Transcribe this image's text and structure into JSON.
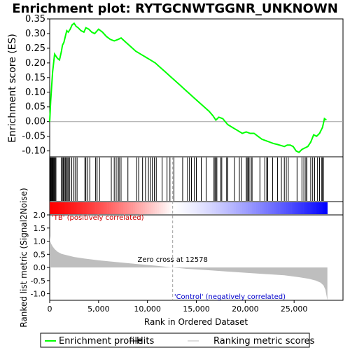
{
  "chart_data": {
    "type": "line",
    "title": "Enrichment plot: RYTGCNWTGGNR_UNKNOWN",
    "es_panel": {
      "ylabel": "Enrichment score (ES)",
      "ylim": [
        -0.12,
        0.35
      ],
      "yticks": [
        -0.1,
        -0.05,
        0.0,
        0.05,
        0.1,
        0.15,
        0.2,
        0.25,
        0.3,
        0.35
      ],
      "ytick_labels": [
        "-0.10",
        "-0.05",
        "0.00",
        "0.05",
        "0.10",
        "0.15",
        "0.20",
        "0.25",
        "0.30",
        "0.35"
      ],
      "series": [
        {
          "name": "Enrichment profile",
          "color": "#00ff00",
          "x": [
            0,
            100,
            200,
            300,
            400,
            500,
            600,
            800,
            1000,
            1200,
            1300,
            1450,
            1600,
            1750,
            1900,
            2100,
            2300,
            2500,
            2700,
            2900,
            3200,
            3500,
            3700,
            4000,
            4300,
            4600,
            5000,
            5400,
            5800,
            6200,
            6600,
            7000,
            7300,
            7800,
            8300,
            8800,
            9300,
            9800,
            10300,
            10800,
            11300,
            11800,
            12300,
            12800,
            13300,
            13800,
            14300,
            14800,
            15300,
            15800,
            16300,
            16700,
            17000,
            17300,
            17700,
            18200,
            18700,
            19200,
            19700,
            20100,
            20500,
            20900,
            21300,
            21700,
            22100,
            22500,
            22900,
            23300,
            23700,
            24000,
            24300,
            24600,
            24900,
            25200,
            25500,
            25800,
            26100,
            26400,
            26700,
            27000,
            27300,
            27600,
            27900,
            28100,
            28300
          ],
          "y": [
            0.0,
            0.07,
            0.12,
            0.17,
            0.2,
            0.23,
            0.225,
            0.215,
            0.21,
            0.24,
            0.26,
            0.27,
            0.29,
            0.31,
            0.305,
            0.315,
            0.33,
            0.335,
            0.325,
            0.32,
            0.31,
            0.305,
            0.32,
            0.315,
            0.305,
            0.3,
            0.315,
            0.305,
            0.29,
            0.28,
            0.275,
            0.28,
            0.285,
            0.27,
            0.255,
            0.24,
            0.23,
            0.22,
            0.21,
            0.2,
            0.185,
            0.17,
            0.155,
            0.14,
            0.125,
            0.11,
            0.095,
            0.08,
            0.065,
            0.05,
            0.035,
            0.02,
            0.005,
            0.015,
            0.01,
            -0.01,
            -0.02,
            -0.03,
            -0.04,
            -0.035,
            -0.04,
            -0.04,
            -0.05,
            -0.06,
            -0.065,
            -0.07,
            -0.075,
            -0.078,
            -0.082,
            -0.085,
            -0.08,
            -0.08,
            -0.085,
            -0.1,
            -0.105,
            -0.095,
            -0.09,
            -0.085,
            -0.07,
            -0.045,
            -0.05,
            -0.04,
            -0.02,
            0.01,
            0.005
          ]
        }
      ]
    },
    "hits": {
      "name": "Hits",
      "color": "#000000",
      "positions": [
        40,
        90,
        150,
        220,
        280,
        350,
        420,
        480,
        560,
        640,
        1200,
        1300,
        1400,
        1500,
        1600,
        1700,
        1800,
        1900,
        2050,
        2250,
        2400,
        2600,
        2800,
        3600,
        3700,
        3900,
        4100,
        4700,
        4850,
        5100,
        6300,
        6600,
        6800,
        7000,
        7100,
        7300,
        8000,
        8900,
        9100,
        9500,
        9800,
        10100,
        10300,
        10500,
        10700,
        10900,
        11500,
        12000,
        12300,
        12700,
        13600,
        14100,
        14300,
        14500,
        14800,
        15000,
        15500,
        16000,
        16800,
        16900,
        17000,
        17100,
        17500,
        17600,
        18100,
        18200,
        18900,
        19400,
        19600,
        20100,
        20200,
        20300,
        20400,
        20600,
        20700,
        21500,
        22000,
        22200,
        22300,
        22800,
        23300,
        23700,
        24000,
        24200,
        24400,
        25300,
        25800,
        26000,
        26200,
        26300,
        26700,
        26900,
        27100,
        27400,
        27600,
        27800,
        27900,
        28000
      ]
    },
    "metric_panel": {
      "ylabel": "Ranked list metric (Signal2Noise)",
      "xlabel": "Rank in Ordered Dataset",
      "xlim": [
        0,
        30000
      ],
      "xticks": [
        0,
        5000,
        10000,
        15000,
        20000,
        25000
      ],
      "xtick_labels": [
        "0",
        "5,000",
        "10,000",
        "15,000",
        "20,000",
        "25,000"
      ],
      "ylim": [
        -1.25,
        2.0
      ],
      "yticks": [
        -1.0,
        -0.5,
        0.0,
        0.5,
        1.0,
        1.5,
        2.0
      ],
      "ytick_labels": [
        "-1.0",
        "-0.5",
        "0.0",
        "0.5",
        "1.0",
        "1.5",
        "2.0"
      ],
      "zero_cross_label": "Zero cross at 12578",
      "zero_cross": 12578,
      "positive_label": "'TB' (positively correlated)",
      "negative_label": "'Control' (negatively correlated)",
      "total_rank": 28400,
      "series": {
        "name": "Ranking metric scores",
        "color": "#bebebe",
        "x": [
          0,
          50,
          150,
          300,
          500,
          800,
          1200,
          1800,
          2500,
          3500,
          5000,
          7000,
          9000,
          11000,
          12578,
          14000,
          16000,
          18000,
          20000,
          22000,
          24000,
          25500,
          26500,
          27200,
          27700,
          28000,
          28200,
          28300,
          28400
        ],
        "y": [
          1.2,
          1.0,
          0.9,
          0.8,
          0.7,
          0.6,
          0.52,
          0.46,
          0.4,
          0.34,
          0.27,
          0.2,
          0.13,
          0.06,
          0.0,
          -0.05,
          -0.1,
          -0.15,
          -0.2,
          -0.25,
          -0.3,
          -0.37,
          -0.43,
          -0.5,
          -0.58,
          -0.68,
          -0.85,
          -1.05,
          -1.25
        ]
      }
    },
    "legend": [
      {
        "label": "Enrichment profile",
        "color": "#00ff00"
      },
      {
        "label": "Hits",
        "color": "#000000"
      },
      {
        "label": "Ranking metric scores",
        "color": "#bebebe"
      }
    ],
    "colors": {
      "positive": "#ff0000",
      "negative": "#0000ff",
      "zero_line": "#d3d3d3",
      "axes": "#000000"
    }
  }
}
